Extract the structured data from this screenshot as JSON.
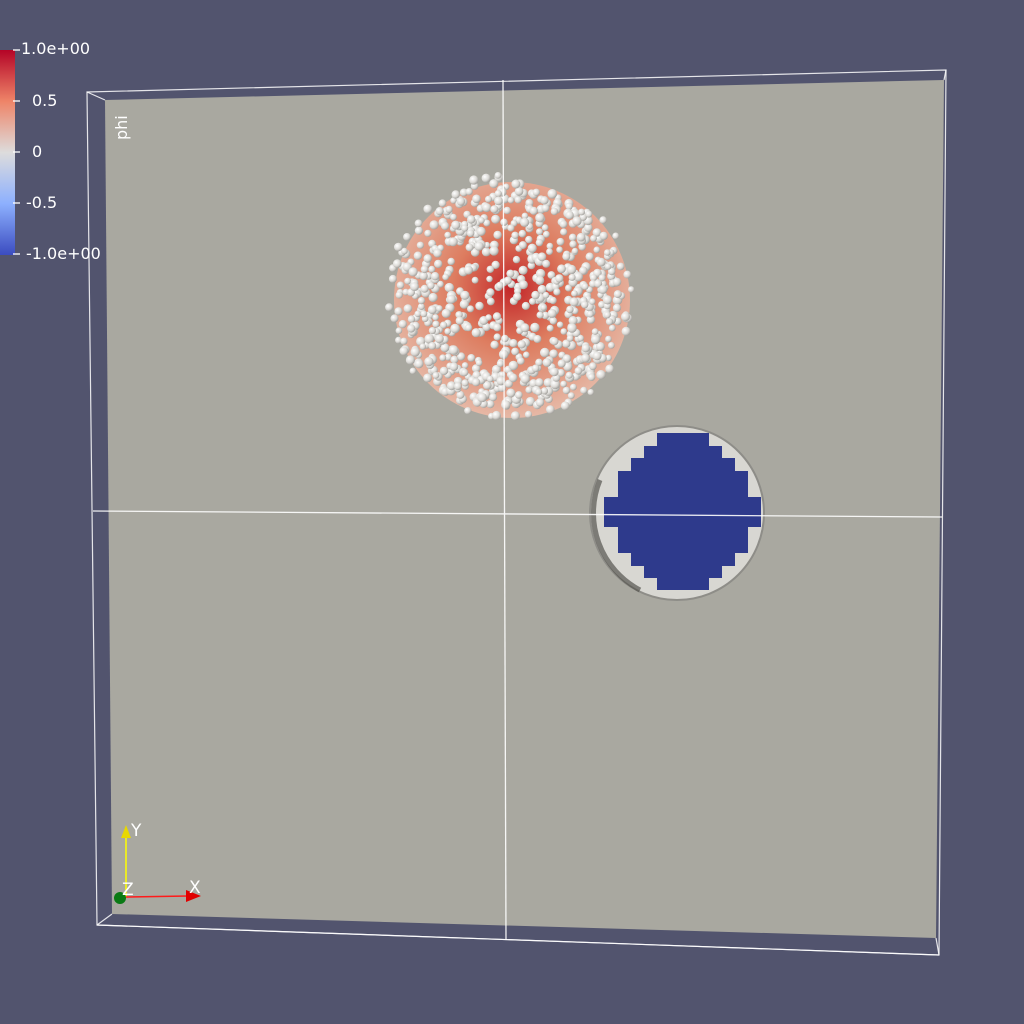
{
  "colorbar": {
    "title": "phi",
    "labels": [
      "1.0e+00",
      "0.5",
      "0",
      "-0.5",
      "-1.0e+00"
    ],
    "range": [
      -1.0,
      1.0
    ],
    "colormap": "cool-to-warm",
    "colors": {
      "high": "#b40426",
      "mid": "#dddcdc",
      "low": "#3b4cc0"
    }
  },
  "axes": {
    "x_label": "X",
    "y_label": "Y",
    "z_label": "Z",
    "colors": {
      "x": "#ff0000",
      "y": "#ffff00",
      "z": "#00aa00"
    }
  },
  "scene": {
    "background": "#52546e",
    "plane_color": "#a9a8a0",
    "outline_color": "#ffffff",
    "blue_region_color": "#2e3a8c",
    "particle_color": "#e8e6e3"
  }
}
